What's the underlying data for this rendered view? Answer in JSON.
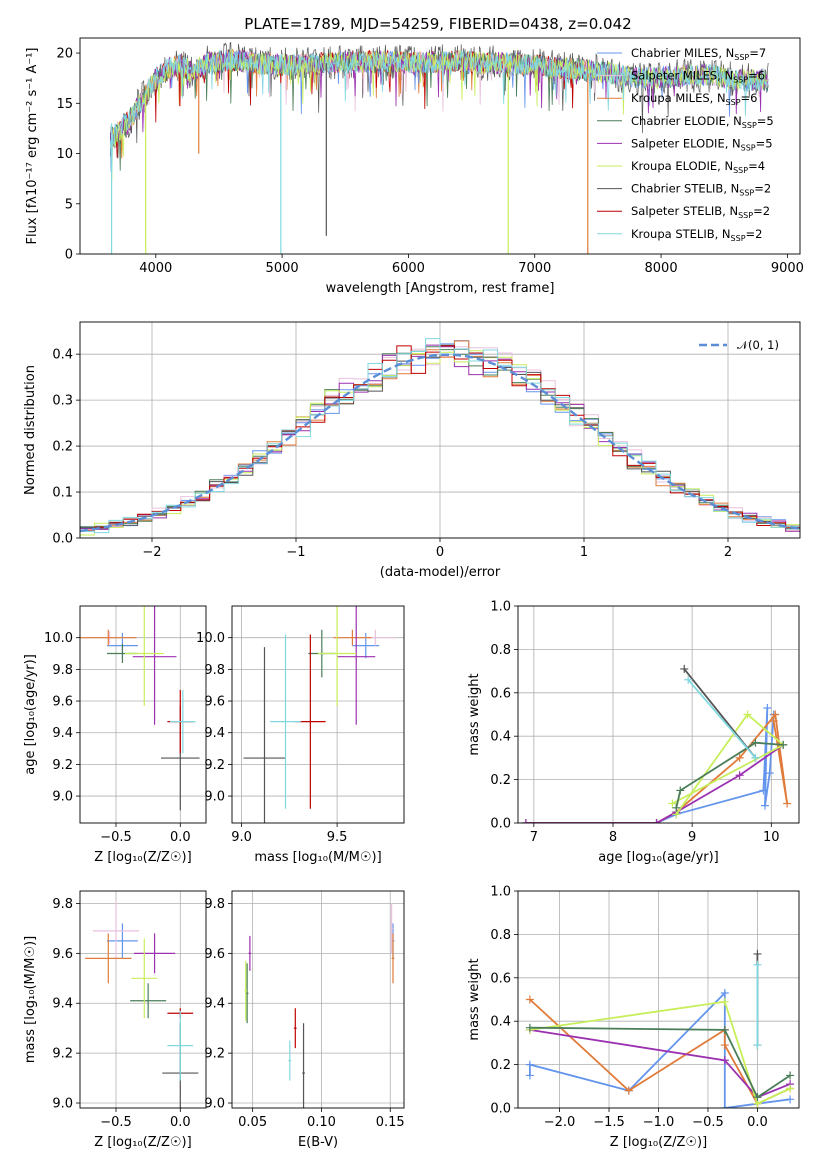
{
  "figure": {
    "title": "PLATE=1789, MJD=54259, FIBERID=0438, z=0.042"
  },
  "colors": {
    "series": [
      "#6495ed",
      "#e9c2dd",
      "#e07b39",
      "#4a7d58",
      "#9b30b0",
      "#c8ee5a",
      "#555555",
      "#c00000",
      "#80d8e0"
    ]
  },
  "chart_data": [
    {
      "id": "spectrum",
      "type": "line",
      "title": "PLATE=1789, MJD=54259, FIBERID=0438, z=0.042",
      "xlabel": "wavelength [Angstrom, rest frame]",
      "ylabel": "Flux [fλ10⁻¹⁷ erg cm⁻² s⁻¹ A⁻¹]",
      "xlim": [
        3400,
        9100
      ],
      "ylim": [
        0,
        21.5
      ],
      "xticks": [
        4000,
        5000,
        6000,
        7000,
        8000,
        9000
      ],
      "yticks": [
        0,
        5,
        10,
        15,
        20
      ],
      "legend_position": "top-right",
      "series": [
        {
          "name": "Chabrier MILES, N_SSP=7",
          "legend": [
            "Chabrier MILES, N",
            "SSP",
            "=7"
          ]
        },
        {
          "name": "Salpeter MILES, N_SSP=6",
          "legend": [
            "Salpeter MILES, N",
            "SSP",
            "=6"
          ]
        },
        {
          "name": "Kroupa MILES, N_SSP=6",
          "legend": [
            "Kroupa MILES, N",
            "SSP",
            "=6"
          ]
        },
        {
          "name": "Chabrier ELODIE, N_SSP=5",
          "legend": [
            "Chabrier ELODIE, N",
            "SSP",
            "=5"
          ]
        },
        {
          "name": "Salpeter ELODIE, N_SSP=5",
          "legend": [
            "Salpeter ELODIE, N",
            "SSP",
            "=5"
          ]
        },
        {
          "name": "Kroupa ELODIE, N_SSP=4",
          "legend": [
            "Kroupa ELODIE, N",
            "SSP",
            "=4"
          ]
        },
        {
          "name": "Chabrier STELIB, N_SSP=2",
          "legend": [
            "Chabrier STELIB, N",
            "SSP",
            "=2"
          ]
        },
        {
          "name": "Salpeter STELIB, N_SSP=2",
          "legend": [
            "Salpeter STELIB, N",
            "SSP",
            "=2"
          ]
        },
        {
          "name": "Kroupa STELIB, N_SSP=2",
          "legend": [
            "Kroupa STELIB, N",
            "SSP",
            "=2"
          ]
        }
      ],
      "continuum": {
        "x": [
          3650,
          3800,
          3900,
          4000,
          4100,
          4200,
          4300,
          4400,
          4600,
          4800,
          5000,
          5200,
          5400,
          5600,
          5800,
          6000,
          6200,
          6400,
          6600,
          6800,
          7000,
          7200,
          7400,
          7600,
          7800,
          8000,
          8200,
          8400,
          8600,
          8850
        ],
        "y": [
          11.5,
          13.5,
          15.5,
          17.5,
          18.5,
          18.8,
          18,
          19,
          19.3,
          19,
          18.8,
          18.9,
          19,
          19.1,
          19.2,
          19,
          19.1,
          19.2,
          19,
          19,
          18.8,
          18.5,
          18.3,
          18,
          17.5,
          17.5,
          17.8,
          17.8,
          17.3,
          17.3
        ]
      },
      "spikes": [
        {
          "x": 3650,
          "y0": 0,
          "y1": 13
        },
        {
          "x": 3920,
          "y0": 0,
          "y1": 16
        },
        {
          "x": 4340,
          "y0": 10,
          "y1": 18
        },
        {
          "x": 4990,
          "y0": 0,
          "y1": 17
        },
        {
          "x": 5350,
          "y0": 1.8,
          "y1": 19
        },
        {
          "x": 6790,
          "y0": 0,
          "y1": 19
        },
        {
          "x": 7420,
          "y0": 0,
          "y1": 18
        }
      ]
    },
    {
      "id": "residuals",
      "type": "line",
      "xlabel": "(data-model)/error",
      "ylabel": "Normed distribution",
      "xlim": [
        -2.5,
        2.5
      ],
      "ylim": [
        0,
        0.47
      ],
      "xticks": [
        -2,
        -1,
        0,
        1,
        2
      ],
      "xtick_labels": [
        "−2",
        "−1",
        "0",
        "1",
        "2"
      ],
      "yticks": [
        0.0,
        0.1,
        0.2,
        0.3,
        0.4
      ],
      "ytick_labels": [
        "0.0",
        "0.1",
        "0.2",
        "0.3",
        "0.4"
      ],
      "legend_position": "top-right",
      "gaussian_label": "𝒩(0, 1)",
      "gaussian_color": "#5b8ed6",
      "bin_width": 0.1
    },
    {
      "id": "age_vs_Z",
      "type": "scatter",
      "xlabel": "Z [log₁₀(Z/Z☉)]",
      "ylabel": "age  [log₁₀(age/yr)]",
      "xlim": [
        -0.78,
        0.2
      ],
      "ylim": [
        8.83,
        10.2
      ],
      "xticks": [
        -0.5,
        0.0
      ],
      "xtick_labels": [
        "−0.5",
        "0.0"
      ],
      "yticks": [
        9.0,
        9.2,
        9.4,
        9.6,
        9.8,
        10.0
      ],
      "ytick_labels": [
        "9.0",
        "9.2",
        "9.4",
        "9.6",
        "9.8",
        "10.0"
      ],
      "points": [
        {
          "s": 0,
          "x": -0.45,
          "y": 9.95,
          "xerr": 0.12,
          "yerr": 0.08
        },
        {
          "s": 1,
          "x": -0.55,
          "y": 10.0,
          "xerr": 0.2,
          "yerr": 0.04
        },
        {
          "s": 2,
          "x": -0.56,
          "y": 10.0,
          "xerr": 0.22,
          "yerr": 0.05
        },
        {
          "s": 3,
          "x": -0.45,
          "y": 9.9,
          "xerr": 0.12,
          "yerr": 0.06
        },
        {
          "s": 4,
          "x": -0.2,
          "y": 9.88,
          "xerr": 0.17,
          "yerr": 0.43
        },
        {
          "s": 5,
          "x": -0.28,
          "y": 9.9,
          "xerr": 0.15,
          "yerr": 0.33
        },
        {
          "s": 6,
          "x": 0.0,
          "y": 9.24,
          "xerr": 0.15,
          "yerr": 0.33
        },
        {
          "s": 7,
          "x": 0.0,
          "y": 9.47,
          "xerr": 0.1,
          "yerr": 0.2
        },
        {
          "s": 8,
          "x": 0.02,
          "y": 9.47,
          "xerr": 0.1,
          "yerr": 0.2
        }
      ]
    },
    {
      "id": "age_vs_mass",
      "type": "scatter",
      "xlabel": "mass [log₁₀(M/M☉)]",
      "xlim": [
        8.95,
        9.85
      ],
      "ylim": [
        8.83,
        10.2
      ],
      "xticks": [
        9.0,
        9.5
      ],
      "xtick_labels": [
        "9.0",
        "9.5"
      ],
      "yticks": [
        9.0,
        9.2,
        9.4,
        9.6,
        9.8,
        10.0
      ],
      "ytick_labels": [
        "9.0",
        "9.2",
        "9.4",
        "9.6",
        "9.8",
        "10.0"
      ],
      "points": [
        {
          "s": 0,
          "x": 9.65,
          "y": 9.95,
          "xerr": 0.07,
          "yerr": 0.08
        },
        {
          "s": 1,
          "x": 9.7,
          "y": 10.0,
          "xerr": 0.1,
          "yerr": 0.05
        },
        {
          "s": 2,
          "x": 9.58,
          "y": 10.0,
          "xerr": 0.1,
          "yerr": 0.05
        },
        {
          "s": 3,
          "x": 9.42,
          "y": 9.9,
          "xerr": 0.07,
          "yerr": 0.15
        },
        {
          "s": 4,
          "x": 9.6,
          "y": 9.88,
          "xerr": 0.1,
          "yerr": 0.43
        },
        {
          "s": 5,
          "x": 9.5,
          "y": 9.9,
          "xerr": 0.1,
          "yerr": 0.33
        },
        {
          "s": 6,
          "x": 9.12,
          "y": 9.24,
          "xerr": 0.11,
          "yerr": 0.7
        },
        {
          "s": 7,
          "x": 9.36,
          "y": 9.47,
          "xerr": 0.08,
          "yerr": 0.55
        },
        {
          "s": 8,
          "x": 9.23,
          "y": 9.47,
          "xerr": 0.08,
          "yerr": 0.55
        }
      ]
    },
    {
      "id": "weight_vs_age",
      "type": "line",
      "xlabel": "age  [log₁₀(age/yr)]",
      "ylabel": "mass weight",
      "xlim": [
        6.8,
        10.35
      ],
      "ylim": [
        0,
        1.0
      ],
      "xticks": [
        7,
        8,
        9,
        10
      ],
      "xtick_labels": [
        "7",
        "8",
        "9",
        "10"
      ],
      "yticks": [
        0.0,
        0.2,
        0.4,
        0.6,
        0.8,
        1.0
      ],
      "ytick_labels": [
        "0.0",
        "0.2",
        "0.4",
        "0.6",
        "0.8",
        "1.0"
      ],
      "series": [
        {
          "s": 0,
          "x": [
            6.9,
            8.55,
            8.8,
            9.9,
            9.95,
            9.92,
            9.98,
            10.03
          ],
          "y": [
            0.0,
            0.0,
            0.04,
            0.15,
            0.53,
            0.08,
            0.23,
            0.5
          ]
        },
        {
          "s": 2,
          "x": [
            6.9,
            8.55,
            8.8,
            9.6,
            10.05,
            10.2,
            10.03
          ],
          "y": [
            0.0,
            0.0,
            0.05,
            0.3,
            0.5,
            0.09,
            0.47
          ]
        },
        {
          "s": 4,
          "x": [
            6.9,
            8.55,
            8.8,
            9.6,
            10.15
          ],
          "y": [
            0.0,
            0.0,
            0.05,
            0.22,
            0.36
          ]
        },
        {
          "s": 5,
          "x": [
            8.8,
            9.7,
            10.15,
            8.75
          ],
          "y": [
            0.04,
            0.5,
            0.36,
            0.09
          ]
        },
        {
          "s": 3,
          "x": [
            8.8,
            8.85,
            9.8,
            10.15
          ],
          "y": [
            0.07,
            0.15,
            0.37,
            0.36
          ]
        },
        {
          "s": 6,
          "x": [
            8.9,
            9.8
          ],
          "y": [
            0.71,
            0.3
          ]
        },
        {
          "s": 8,
          "x": [
            8.95,
            9.8
          ],
          "y": [
            0.66,
            0.3
          ]
        }
      ]
    },
    {
      "id": "mass_vs_Z",
      "type": "scatter",
      "xlabel": "Z [log₁₀(Z/Z☉)]",
      "ylabel": "mass [log₁₀(M/M☉)]",
      "xlim": [
        -0.78,
        0.2
      ],
      "ylim": [
        8.98,
        9.85
      ],
      "xticks": [
        -0.5,
        0.0
      ],
      "xtick_labels": [
        "−0.5",
        "0.0"
      ],
      "yticks": [
        9.0,
        9.2,
        9.4,
        9.6,
        9.8
      ],
      "ytick_labels": [
        "9.0",
        "9.2",
        "9.4",
        "9.6",
        "9.8"
      ],
      "points": [
        {
          "s": 0,
          "x": -0.45,
          "y": 9.65,
          "xerr": 0.12,
          "yerr": 0.07
        },
        {
          "s": 1,
          "x": -0.5,
          "y": 9.69,
          "xerr": 0.18,
          "yerr": 0.12
        },
        {
          "s": 2,
          "x": -0.56,
          "y": 9.58,
          "xerr": 0.18,
          "yerr": 0.1
        },
        {
          "s": 3,
          "x": -0.25,
          "y": 9.41,
          "xerr": 0.14,
          "yerr": 0.07
        },
        {
          "s": 4,
          "x": -0.2,
          "y": 9.6,
          "xerr": 0.16,
          "yerr": 0.08
        },
        {
          "s": 5,
          "x": -0.28,
          "y": 9.5,
          "xerr": 0.1,
          "yerr": 0.16
        },
        {
          "s": 6,
          "x": 0.0,
          "y": 9.12,
          "xerr": 0.14,
          "yerr": 0.2
        },
        {
          "s": 7,
          "x": 0.0,
          "y": 9.36,
          "xerr": 0.1,
          "yerr": 0.02
        },
        {
          "s": 8,
          "x": 0.0,
          "y": 9.23,
          "xerr": 0.1,
          "yerr": 0.14
        }
      ]
    },
    {
      "id": "mass_vs_EBV",
      "type": "scatter",
      "xlabel": "E(B-V)",
      "xlim": [
        0.035,
        0.16
      ],
      "ylim": [
        8.98,
        9.85
      ],
      "xticks": [
        0.05,
        0.1,
        0.15
      ],
      "xtick_labels": [
        "0.05",
        "0.10",
        "0.15"
      ],
      "yticks": [
        9.0,
        9.2,
        9.4,
        9.6,
        9.8
      ],
      "ytick_labels": [
        "9.0",
        "9.2",
        "9.4",
        "9.6",
        "9.8"
      ],
      "points": [
        {
          "s": 0,
          "x": 0.152,
          "y": 9.65,
          "xerr": 0.001,
          "yerr": 0.07
        },
        {
          "s": 1,
          "x": 0.151,
          "y": 9.7,
          "xerr": 0.001,
          "yerr": 0.1
        },
        {
          "s": 2,
          "x": 0.152,
          "y": 9.58,
          "xerr": 0.001,
          "yerr": 0.1
        },
        {
          "s": 3,
          "x": 0.046,
          "y": 9.44,
          "xerr": 0.001,
          "yerr": 0.12
        },
        {
          "s": 4,
          "x": 0.048,
          "y": 9.6,
          "xerr": 0.001,
          "yerr": 0.07
        },
        {
          "s": 5,
          "x": 0.045,
          "y": 9.45,
          "xerr": 0.001,
          "yerr": 0.12
        },
        {
          "s": 6,
          "x": 0.087,
          "y": 9.12,
          "xerr": 0.001,
          "yerr": 0.2
        },
        {
          "s": 7,
          "x": 0.081,
          "y": 9.3,
          "xerr": 0.001,
          "yerr": 0.08
        },
        {
          "s": 8,
          "x": 0.077,
          "y": 9.17,
          "xerr": 0.001,
          "yerr": 0.08
        }
      ]
    },
    {
      "id": "weight_vs_Z",
      "type": "line",
      "xlabel": "Z [log₁₀(Z/Z☉)]",
      "ylabel": "mass weight",
      "xlim": [
        -2.42,
        0.42
      ],
      "ylim": [
        0,
        1.0
      ],
      "xticks": [
        -2.0,
        -1.5,
        -1.0,
        -0.5,
        0.0
      ],
      "xtick_labels": [
        "−2.0",
        "−1.5",
        "−1.0",
        "−0.5",
        "0.0"
      ],
      "yticks": [
        0.0,
        0.2,
        0.4,
        0.6,
        0.8,
        1.0
      ],
      "ytick_labels": [
        "0.0",
        "0.2",
        "0.4",
        "0.6",
        "0.8",
        "1.0"
      ],
      "series": [
        {
          "s": 0,
          "x": [
            -2.3,
            -2.3,
            -1.3,
            -0.33,
            -0.33,
            0.0,
            0.33
          ],
          "y": [
            0.15,
            0.2,
            0.08,
            0.53,
            0.0,
            0.02,
            0.04
          ]
        },
        {
          "s": 2,
          "x": [
            -2.3,
            -1.3,
            -0.33,
            -0.33,
            0.0,
            0.33
          ],
          "y": [
            0.5,
            0.08,
            0.36,
            0.29,
            0.02,
            0.09
          ]
        },
        {
          "s": 4,
          "x": [
            -2.3,
            -0.33,
            0.0,
            0.33
          ],
          "y": [
            0.36,
            0.22,
            0.05,
            0.11
          ]
        },
        {
          "s": 5,
          "x": [
            -2.3,
            -0.33,
            0.0,
            0.33
          ],
          "y": [
            0.36,
            0.49,
            0.02,
            0.09
          ]
        },
        {
          "s": 3,
          "x": [
            -2.3,
            -0.33,
            0.0,
            0.33
          ],
          "y": [
            0.37,
            0.36,
            0.05,
            0.15
          ]
        },
        {
          "s": 6,
          "x": [
            0.0,
            0.0
          ],
          "y": [
            0.71,
            0.29
          ]
        },
        {
          "s": 8,
          "x": [
            0.0,
            0.0
          ],
          "y": [
            0.66,
            0.29
          ]
        }
      ]
    }
  ]
}
